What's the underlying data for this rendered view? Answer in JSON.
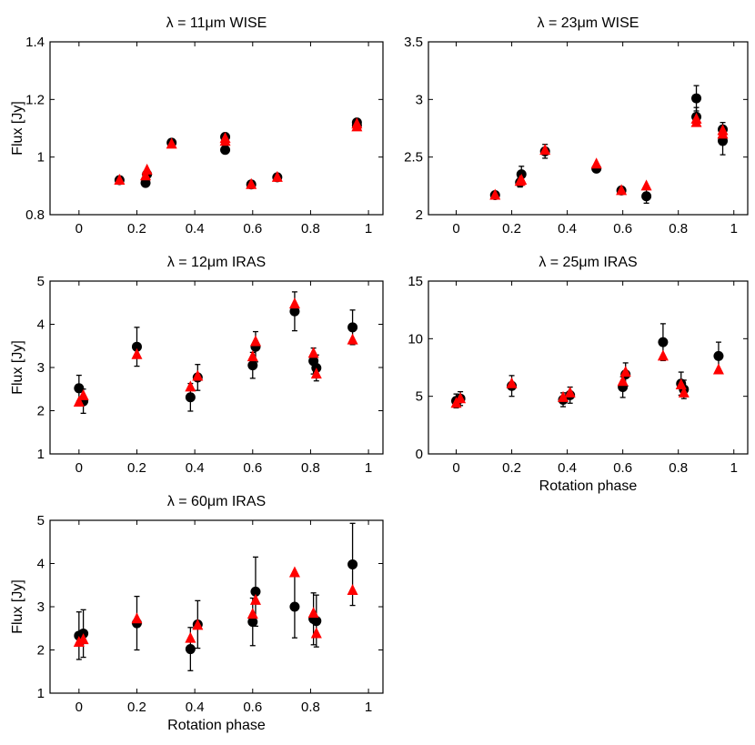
{
  "colors": {
    "observed": "#000000",
    "model": "#ff0000",
    "axes": "#000000",
    "background": "#ffffff"
  },
  "chart_data": [
    {
      "type": "scatter",
      "title": "λ = 11μm  WISE",
      "xlabel": "",
      "ylabel": "Flux [Jy]",
      "xlim": [
        -0.1,
        1.05
      ],
      "ylim": [
        0.8,
        1.4
      ],
      "xticks": [
        0,
        0.2,
        0.4,
        0.6,
        0.8,
        1
      ],
      "xtick_labels": [
        "0",
        "0.2",
        "0.4",
        "0.6",
        "0.8",
        "1"
      ],
      "yticks": [
        0.8,
        1,
        1.2,
        1.4
      ],
      "ytick_labels": [
        "0.8",
        "1",
        "1.2",
        "1.4"
      ],
      "grid": false,
      "series": [
        {
          "marker": "circle",
          "color": "#000000",
          "x": [
            0.14,
            0.23,
            0.235,
            0.32,
            0.505,
            0.505,
            0.595,
            0.685,
            0.96,
            0.96
          ],
          "y": [
            0.92,
            0.91,
            0.94,
            1.05,
            1.07,
            1.025,
            0.905,
            0.93,
            1.12,
            1.11
          ],
          "err": [
            0.005,
            0.005,
            0.005,
            0.005,
            0.005,
            0.005,
            0.005,
            0.005,
            0.005,
            0.005
          ]
        },
        {
          "marker": "triangle",
          "color": "#ff0000",
          "x": [
            0.14,
            0.23,
            0.235,
            0.32,
            0.505,
            0.505,
            0.595,
            0.685,
            0.96,
            0.96
          ],
          "y": [
            0.92,
            0.935,
            0.955,
            1.045,
            1.065,
            1.055,
            0.905,
            0.93,
            1.115,
            1.105
          ]
        }
      ]
    },
    {
      "type": "scatter",
      "title": "λ = 23μm  WISE",
      "xlabel": "",
      "ylabel": "",
      "xlim": [
        -0.1,
        1.05
      ],
      "ylim": [
        2,
        3.5
      ],
      "xticks": [
        0,
        0.2,
        0.4,
        0.6,
        0.8,
        1
      ],
      "xtick_labels": [
        "0",
        "0.2",
        "0.4",
        "0.6",
        "0.8",
        "1"
      ],
      "yticks": [
        2,
        2.5,
        3,
        3.5
      ],
      "ytick_labels": [
        "2",
        "2.5",
        "3",
        "3.5"
      ],
      "grid": false,
      "series": [
        {
          "marker": "circle",
          "color": "#000000",
          "x": [
            0.14,
            0.23,
            0.235,
            0.32,
            0.505,
            0.595,
            0.685,
            0.865,
            0.865,
            0.96,
            0.96
          ],
          "y": [
            2.17,
            2.28,
            2.35,
            2.55,
            2.4,
            2.21,
            2.16,
            3.01,
            2.85,
            2.64,
            2.74
          ],
          "err": [
            0.03,
            0.04,
            0.07,
            0.06,
            0.03,
            0.03,
            0.06,
            0.11,
            0.08,
            0.12,
            0.06
          ]
        },
        {
          "marker": "triangle",
          "color": "#ff0000",
          "x": [
            0.14,
            0.23,
            0.235,
            0.32,
            0.505,
            0.595,
            0.685,
            0.865,
            0.865,
            0.96,
            0.96
          ],
          "y": [
            2.17,
            2.29,
            2.3,
            2.56,
            2.44,
            2.21,
            2.25,
            2.8,
            2.83,
            2.7,
            2.73
          ]
        }
      ]
    },
    {
      "type": "scatter",
      "title": "λ = 12μm  IRAS",
      "xlabel": "",
      "ylabel": "Flux [Jy]",
      "xlim": [
        -0.1,
        1.05
      ],
      "ylim": [
        1,
        5
      ],
      "xticks": [
        0,
        0.2,
        0.4,
        0.6,
        0.8,
        1
      ],
      "xtick_labels": [
        "0",
        "0.2",
        "0.4",
        "0.6",
        "0.8",
        "1"
      ],
      "yticks": [
        1,
        2,
        3,
        4,
        5
      ],
      "ytick_labels": [
        "1",
        "2",
        "3",
        "4",
        "5"
      ],
      "grid": false,
      "series": [
        {
          "marker": "circle",
          "color": "#000000",
          "x": [
            0.0,
            0.015,
            0.2,
            0.385,
            0.41,
            0.6,
            0.61,
            0.745,
            0.81,
            0.82,
            0.945
          ],
          "y": [
            2.52,
            2.22,
            3.48,
            2.31,
            2.77,
            3.05,
            3.48,
            4.3,
            3.15,
            2.99,
            3.93
          ],
          "err": [
            0.3,
            0.28,
            0.45,
            0.32,
            0.3,
            0.3,
            0.35,
            0.45,
            0.3,
            0.3,
            0.4
          ]
        },
        {
          "marker": "triangle",
          "color": "#ff0000",
          "x": [
            0.0,
            0.015,
            0.2,
            0.385,
            0.41,
            0.6,
            0.61,
            0.745,
            0.81,
            0.82,
            0.945
          ],
          "y": [
            2.2,
            2.35,
            3.3,
            2.55,
            2.8,
            3.25,
            3.6,
            4.47,
            3.33,
            2.85,
            3.64
          ]
        }
      ]
    },
    {
      "type": "scatter",
      "title": "λ = 25μm  IRAS",
      "xlabel": "Rotation phase",
      "ylabel": "",
      "xlim": [
        -0.1,
        1.05
      ],
      "ylim": [
        0,
        15
      ],
      "xticks": [
        0,
        0.2,
        0.4,
        0.6,
        0.8,
        1
      ],
      "xtick_labels": [
        "0",
        "0.2",
        "0.4",
        "0.6",
        "0.8",
        "1"
      ],
      "yticks": [
        0,
        5,
        10,
        15
      ],
      "ytick_labels": [
        "0",
        "5",
        "10",
        "15"
      ],
      "grid": false,
      "series": [
        {
          "marker": "circle",
          "color": "#000000",
          "x": [
            0.0,
            0.015,
            0.2,
            0.385,
            0.41,
            0.6,
            0.61,
            0.745,
            0.81,
            0.82,
            0.945
          ],
          "y": [
            4.6,
            4.8,
            5.9,
            4.7,
            5.1,
            5.8,
            6.9,
            9.7,
            6.1,
            5.6,
            8.5
          ],
          "err": [
            0.6,
            0.6,
            0.9,
            0.6,
            0.7,
            0.9,
            1.0,
            1.6,
            1.0,
            0.8,
            1.2
          ]
        },
        {
          "marker": "triangle",
          "color": "#ff0000",
          "x": [
            0.0,
            0.015,
            0.2,
            0.385,
            0.41,
            0.6,
            0.61,
            0.745,
            0.81,
            0.82,
            0.945
          ],
          "y": [
            4.4,
            4.8,
            6.1,
            4.9,
            5.3,
            6.3,
            7.1,
            8.5,
            6.0,
            5.3,
            7.3
          ]
        }
      ]
    },
    {
      "type": "scatter",
      "title": "λ = 60μm  IRAS",
      "xlabel": "Rotation phase",
      "ylabel": "Flux [Jy]",
      "xlim": [
        -0.1,
        1.05
      ],
      "ylim": [
        1,
        5
      ],
      "xticks": [
        0,
        0.2,
        0.4,
        0.6,
        0.8,
        1
      ],
      "xtick_labels": [
        "0",
        "0.2",
        "0.4",
        "0.6",
        "0.8",
        "1"
      ],
      "yticks": [
        1,
        2,
        3,
        4,
        5
      ],
      "ytick_labels": [
        "1",
        "2",
        "3",
        "4",
        "5"
      ],
      "grid": false,
      "series": [
        {
          "marker": "circle",
          "color": "#000000",
          "x": [
            0.0,
            0.015,
            0.2,
            0.385,
            0.41,
            0.6,
            0.61,
            0.745,
            0.81,
            0.82,
            0.945
          ],
          "y": [
            2.33,
            2.38,
            2.62,
            2.02,
            2.59,
            2.65,
            3.35,
            3.0,
            2.72,
            2.67,
            3.98
          ],
          "err": [
            0.55,
            0.55,
            0.62,
            0.5,
            0.55,
            0.55,
            0.8,
            0.72,
            0.6,
            0.6,
            0.95
          ]
        },
        {
          "marker": "triangle",
          "color": "#ff0000",
          "x": [
            0.0,
            0.015,
            0.2,
            0.385,
            0.41,
            0.6,
            0.61,
            0.745,
            0.81,
            0.82,
            0.945
          ],
          "y": [
            2.18,
            2.24,
            2.72,
            2.27,
            2.57,
            2.83,
            3.15,
            3.79,
            2.85,
            2.38,
            3.38
          ]
        }
      ]
    }
  ]
}
